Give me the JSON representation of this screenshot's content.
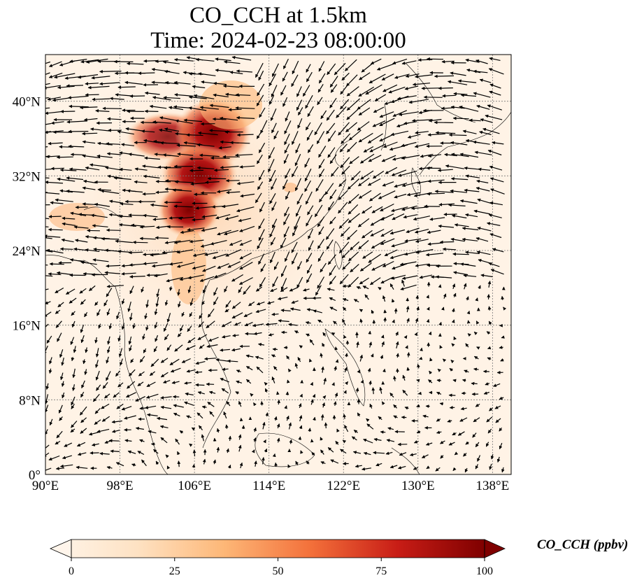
{
  "title": {
    "line1": "CO_CCH at 1.5km",
    "line2": "Time: 2024-02-23 08:00:00"
  },
  "map": {
    "lon_range": [
      90,
      140
    ],
    "lat_range": [
      0,
      45
    ],
    "lon_ticks": [
      "90°E",
      "98°E",
      "106°E",
      "114°E",
      "122°E",
      "130°E",
      "138°E"
    ],
    "lat_ticks": [
      "0°",
      "8°N",
      "16°N",
      "24°N",
      "32°N",
      "40°N"
    ],
    "gridlines": true,
    "field": "CO_CCH concentration with wind vectors",
    "plume_color": "#8b0000"
  },
  "colorbar": {
    "label": "CO_CCH (ppbv)",
    "min": 0,
    "max": 100,
    "ticks": [
      "0",
      "25",
      "50",
      "75",
      "100"
    ],
    "colors": [
      "#fff5eb",
      "#fdd9b1",
      "#fdae6b",
      "#f16913",
      "#d94801",
      "#a50f15",
      "#7f0000"
    ],
    "extend": "both"
  }
}
